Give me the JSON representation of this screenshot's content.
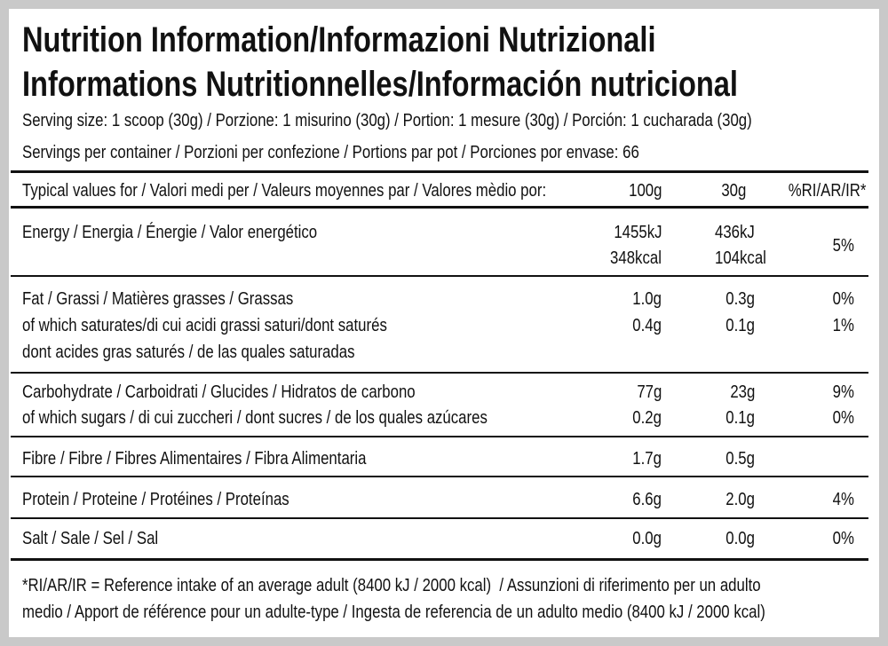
{
  "header": {
    "title_lines": [
      "Nutrition Information/Informazioni Nutrizionali",
      "Informations Nutritionnelles/Información nutricional"
    ],
    "serving_size": "Serving size: 1 scoop (30g) / Porzione: 1 misurino (30g) / Portion: 1 mesure (30g) / Porción: 1 cucharada (30g)",
    "servings_per_container": "Servings per container / Porzioni per confezione / Portions par pot / Porciones por envase: 66"
  },
  "table": {
    "header": [
      "Typical values for / Valori medi per / Valeurs moyennes par / Valores mèdio por:",
      "100g",
      "30g",
      "%RI/AR/IR*"
    ],
    "groups": [
      {
        "label": [
          "Energy / Energia / Énergie / Valor energético"
        ],
        "per_100g": [
          "1455kJ",
          "348kcal"
        ],
        "per_30g": [
          "436kJ",
          "104kcal"
        ],
        "ri": [
          "5%"
        ]
      },
      {
        "label": [
          "Fat / Grassi / Matières grasses / Grassas",
          "of which saturates/di cui acidi grassi saturi/dont saturés",
          "dont acides gras saturés / de las quales saturadas"
        ],
        "per_100g": [
          "1.0g",
          "0.4g"
        ],
        "per_30g": [
          "0.3g",
          "0.1g"
        ],
        "ri": [
          "0%",
          "1%"
        ]
      },
      {
        "label": [
          "Carbohydrate / Carboidrati / Glucides / Hidratos de carbono",
          "of which sugars / di cui zuccheri / dont sucres / de los quales azúcares"
        ],
        "per_100g": [
          "77g",
          "0.2g"
        ],
        "per_30g": [
          "23g",
          "0.1g"
        ],
        "ri": [
          "9%",
          "0%"
        ]
      },
      {
        "label": [
          "Fibre / Fibre / Fibres Alimentaires / Fibra Alimentaria"
        ],
        "per_100g": [
          "1.7g"
        ],
        "per_30g": [
          "0.5g"
        ],
        "ri": []
      },
      {
        "label": [
          "Protein / Proteine / Protéines / Proteínas"
        ],
        "per_100g": [
          "6.6g"
        ],
        "per_30g": [
          "2.0g"
        ],
        "ri": [
          "4%"
        ]
      },
      {
        "label": [
          "Salt / Sale / Sel / Sal"
        ],
        "per_100g": [
          "0.0g"
        ],
        "per_30g": [
          "0.0g"
        ],
        "ri": [
          "0%"
        ]
      }
    ]
  },
  "footnote": [
    "*RI/AR/IR = Reference intake of an average adult (8400 kJ / 2000 kcal)  / Assunzioni di riferimento per un adulto",
    "medio / Apport de référence pour un adulte-type / Ingesta de referencia de un adulto medio (8400 kJ / 2000 kcal)"
  ]
}
